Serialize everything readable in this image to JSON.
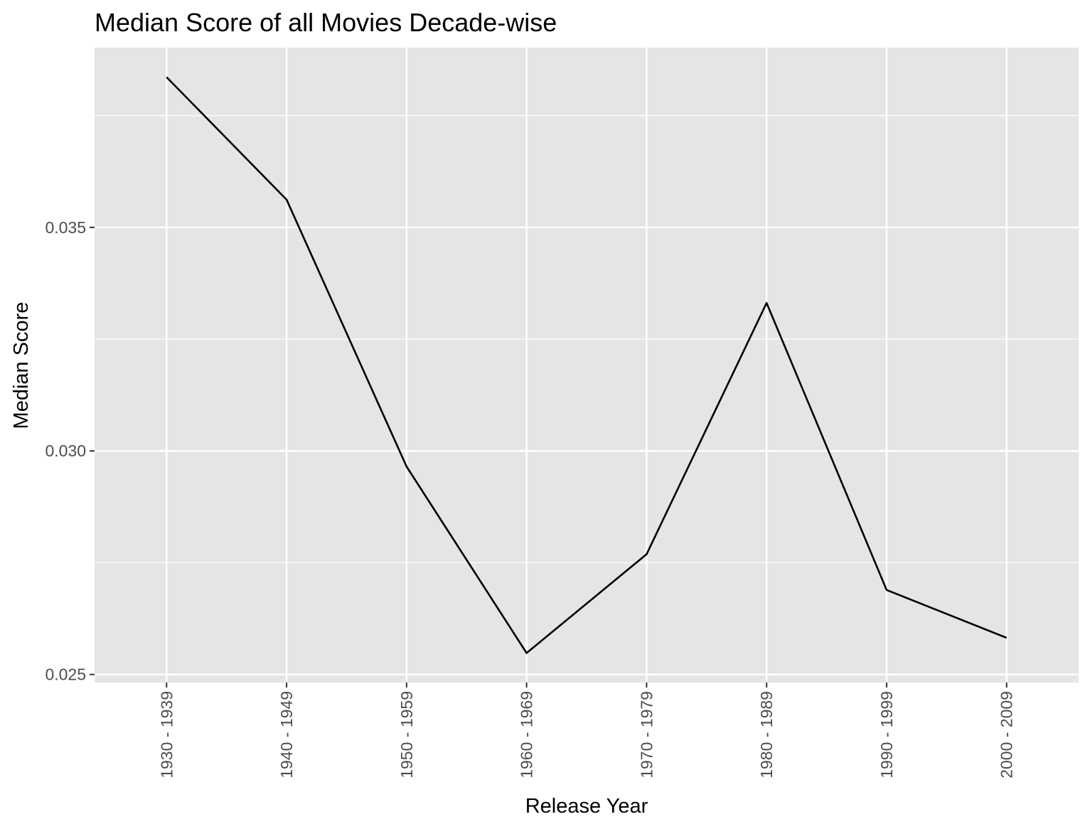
{
  "chart_data": {
    "type": "line",
    "title": "Median Score of all Movies Decade-wise",
    "xlabel": "Release Year",
    "ylabel": "Median Score",
    "categories": [
      "1930 - 1939",
      "1940 - 1949",
      "1950 - 1959",
      "1960 - 1969",
      "1970 - 1979",
      "1980 - 1989",
      "1990 - 1999",
      "2000 - 2009"
    ],
    "series": [
      {
        "values": [
          0.03836,
          0.03562,
          0.02965,
          0.02548,
          0.02769,
          0.03331,
          0.02689,
          0.02582
        ]
      }
    ],
    "y_ticks": [
      0.025,
      0.03,
      0.035
    ],
    "y_tick_labels": [
      "0.025",
      "0.030",
      "0.035"
    ],
    "ylim": [
      0.02482,
      0.03902
    ],
    "grid": true,
    "legend": "none",
    "colors": {
      "panel": "#e5e5e5",
      "grid": "#ffffff",
      "line": "#000000",
      "tick_text": "#4d4d4d",
      "tick_mark": "#333333"
    }
  }
}
